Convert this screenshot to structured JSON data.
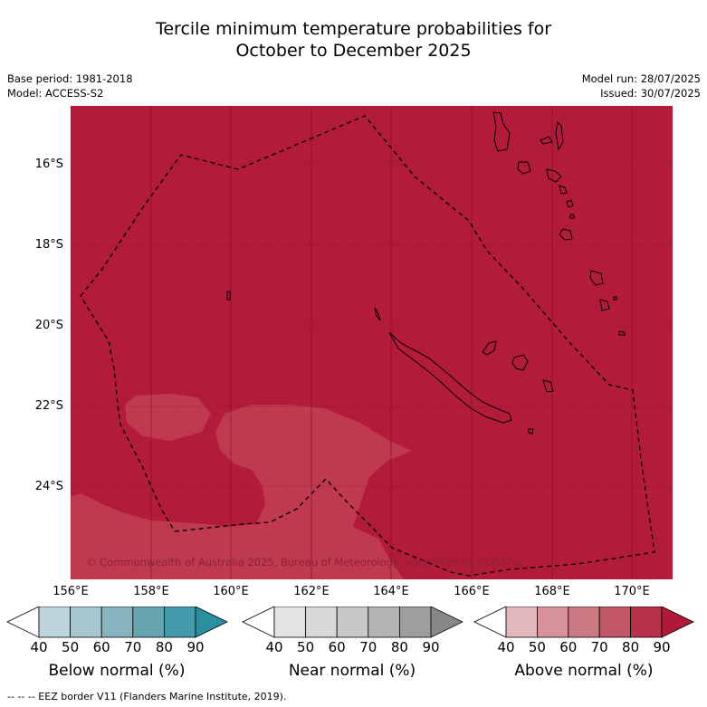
{
  "title": {
    "line1": "Tercile minimum temperature probabilities for",
    "line2": "October to December 2025"
  },
  "meta": {
    "base_period": "Base period: 1981-2018",
    "model": "Model: ACCESS-S2",
    "model_run": "Model run: 28/07/2025",
    "issued": "Issued: 30/07/2025"
  },
  "map": {
    "background_color": "#b21c3a",
    "lower_category_color": "#c03a4f",
    "latitude_labels": [
      "16°S",
      "18°S",
      "20°S",
      "22°S",
      "24°S"
    ],
    "longitude_labels": [
      "156°E",
      "158°E",
      "160°E",
      "162°E",
      "164°E",
      "166°E",
      "168°E",
      "170°E"
    ],
    "copyright": "© Commonwealth of Australia 2025, Bureau of Meteorology, supported by COSPPac"
  },
  "legend": {
    "tick_labels": [
      "40",
      "50",
      "60",
      "70",
      "80",
      "90"
    ],
    "below": {
      "label": "Below normal (%)",
      "colors": [
        "#ffffff",
        "#bfd5dc",
        "#a5c6cd",
        "#87b4bf",
        "#67a5b1",
        "#4499aa",
        "#2a8fa1"
      ]
    },
    "near": {
      "label": "Near normal (%)",
      "colors": [
        "#ffffff",
        "#e4e4e4",
        "#d8d8d8",
        "#c8c8c8",
        "#b4b4b4",
        "#9e9e9e",
        "#888888"
      ]
    },
    "above": {
      "label": "Above normal (%)",
      "colors": [
        "#ffffff",
        "#e2b6bd",
        "#d7939c",
        "#cc7a83",
        "#c25767",
        "#b8314a",
        "#b01a3a"
      ]
    }
  },
  "footer": "-- -- -- EEZ border V11 (Flanders Marine Institute, 2019)."
}
